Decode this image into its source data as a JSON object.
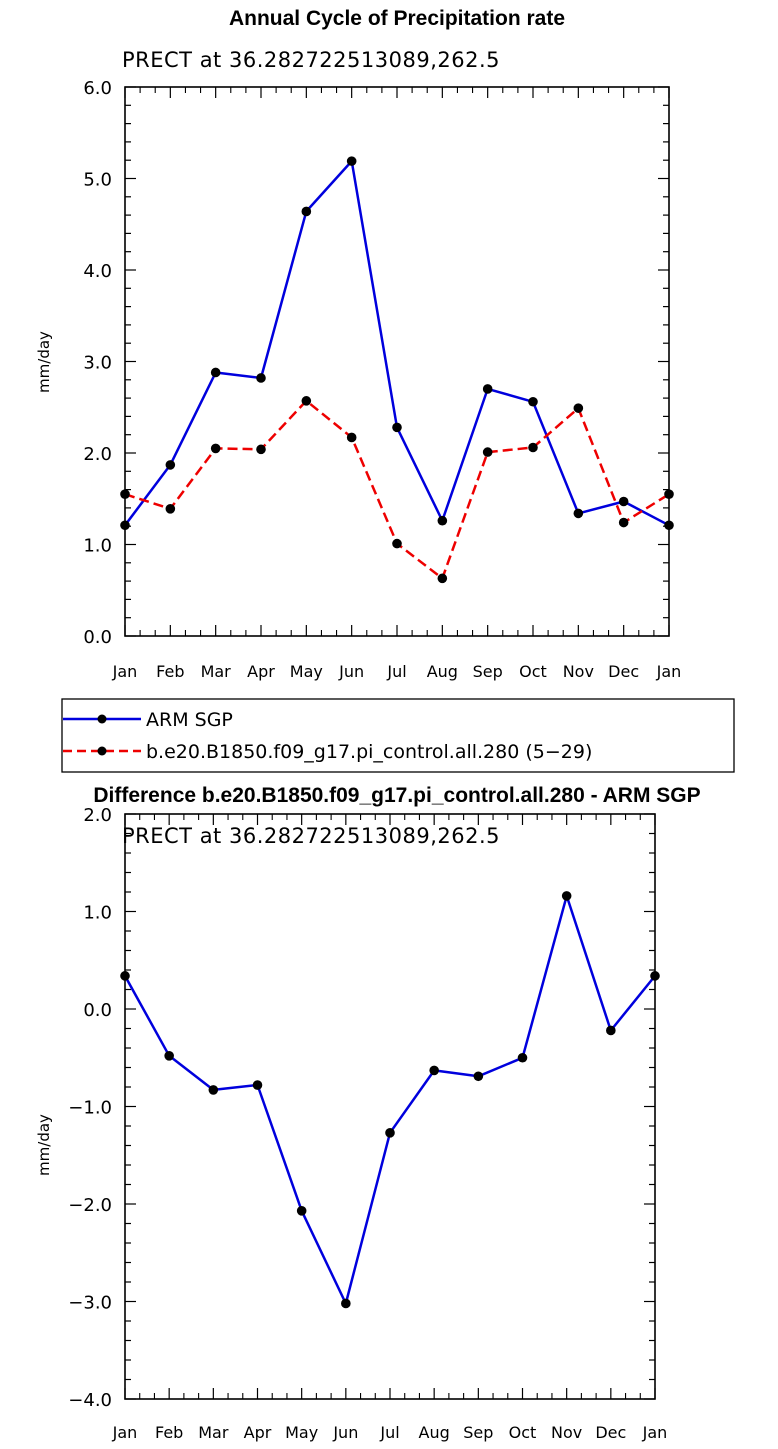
{
  "chart_data": [
    {
      "type": "line",
      "title": "Annual Cycle of Precipitation rate",
      "subtitle": "PRECT at 36.282722513089,262.5",
      "ylabel": "mm/day",
      "ylim": [
        0.0,
        6.0
      ],
      "yticks": [
        "0.0",
        "1.0",
        "2.0",
        "3.0",
        "4.0",
        "5.0",
        "6.0"
      ],
      "categories": [
        "Jan",
        "Feb",
        "Mar",
        "Apr",
        "May",
        "Jun",
        "Jul",
        "Aug",
        "Sep",
        "Oct",
        "Nov",
        "Dec",
        "Jan"
      ],
      "series": [
        {
          "name": "ARM SGP",
          "color": "#0000dd",
          "dash": "solid",
          "values": [
            1.21,
            1.87,
            2.88,
            2.82,
            4.64,
            5.19,
            2.28,
            1.26,
            2.7,
            2.56,
            1.34,
            1.47,
            1.21
          ]
        },
        {
          "name": "b.e20.B1850.f09_g17.pi_control.all.280 (5−29)",
          "color": "#ee0000",
          "dash": "dashed",
          "values": [
            1.55,
            1.39,
            2.05,
            2.04,
            2.57,
            2.17,
            1.01,
            0.63,
            2.01,
            2.06,
            2.49,
            1.24,
            1.55
          ]
        }
      ],
      "legend": "below plot"
    },
    {
      "type": "line",
      "title": "Difference b.e20.B1850.f09_g17.pi_control.all.280 - ARM SGP",
      "subtitle": "PRECT at 36.282722513089,262.5",
      "ylabel": "mm/day",
      "ylim": [
        -4.0,
        2.0
      ],
      "yticks": [
        "−4.0",
        "−3.0",
        "−2.0",
        "−1.0",
        "0.0",
        "1.0",
        "2.0"
      ],
      "categories": [
        "Jan",
        "Feb",
        "Mar",
        "Apr",
        "May",
        "Jun",
        "Jul",
        "Aug",
        "Sep",
        "Oct",
        "Nov",
        "Dec",
        "Jan"
      ],
      "series": [
        {
          "color": "#0000dd",
          "dash": "solid",
          "values": [
            0.34,
            -0.48,
            -0.83,
            -0.78,
            -2.07,
            -3.02,
            -1.27,
            -0.63,
            -0.69,
            -0.5,
            1.16,
            -0.22,
            0.34
          ]
        }
      ]
    }
  ]
}
